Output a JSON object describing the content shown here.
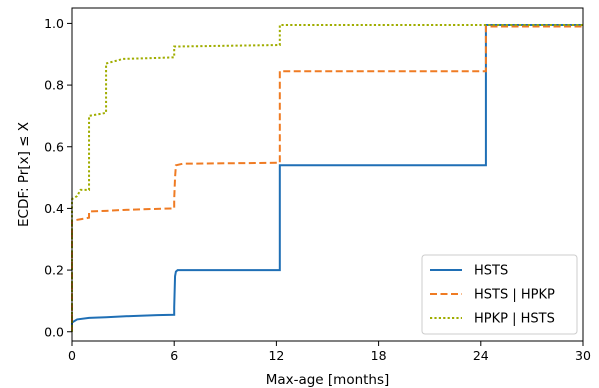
{
  "chart_data": {
    "type": "line",
    "xlabel": "Max-age [months]",
    "ylabel": "ECDF: Pr[x] ≤ X",
    "xlim": [
      0,
      30
    ],
    "ylim": [
      -0.03,
      1.05
    ],
    "xticks": [
      0,
      6,
      12,
      18,
      24,
      30
    ],
    "yticks": [
      0.0,
      0.2,
      0.4,
      0.6,
      0.8,
      1.0
    ],
    "xtick_labels": [
      "0",
      "6",
      "12",
      "18",
      "24",
      "30"
    ],
    "ytick_labels": [
      "0.0",
      "0.2",
      "0.4",
      "0.6",
      "0.8",
      "1.0"
    ],
    "grid": false,
    "legend_position": "lower-right",
    "series": [
      {
        "name": "HSTS",
        "color": "#1f6fb5",
        "style": "solid",
        "points": [
          [
            0,
            0.0
          ],
          [
            0,
            0.03
          ],
          [
            0.3,
            0.04
          ],
          [
            1,
            0.045
          ],
          [
            2,
            0.047
          ],
          [
            3,
            0.05
          ],
          [
            4,
            0.052
          ],
          [
            5,
            0.054
          ],
          [
            6,
            0.055
          ],
          [
            6,
            0.08
          ],
          [
            6.05,
            0.18
          ],
          [
            6.1,
            0.195
          ],
          [
            6.2,
            0.2
          ],
          [
            12.2,
            0.2
          ],
          [
            12.2,
            0.54
          ],
          [
            24.3,
            0.54
          ],
          [
            24.3,
            0.995
          ],
          [
            30,
            0.995
          ]
        ]
      },
      {
        "name": "HSTS | HPKP",
        "color": "#ef7b23",
        "style": "dashed",
        "points": [
          [
            0,
            0.0
          ],
          [
            0,
            0.36
          ],
          [
            0.5,
            0.365
          ],
          [
            1,
            0.37
          ],
          [
            1,
            0.39
          ],
          [
            2,
            0.392
          ],
          [
            3,
            0.395
          ],
          [
            4,
            0.397
          ],
          [
            6,
            0.4
          ],
          [
            6,
            0.43
          ],
          [
            6.05,
            0.5
          ],
          [
            6.1,
            0.54
          ],
          [
            6.5,
            0.545
          ],
          [
            12.2,
            0.548
          ],
          [
            12.2,
            0.845
          ],
          [
            24.3,
            0.845
          ],
          [
            24.3,
            0.99
          ],
          [
            30,
            0.99
          ]
        ]
      },
      {
        "name": "HPKP | HSTS",
        "color": "#a0ad00",
        "style": "dotted",
        "points": [
          [
            0,
            0.0
          ],
          [
            0,
            0.43
          ],
          [
            0.3,
            0.44
          ],
          [
            0.5,
            0.46
          ],
          [
            1,
            0.46
          ],
          [
            1,
            0.7
          ],
          [
            2,
            0.71
          ],
          [
            2,
            0.87
          ],
          [
            3,
            0.885
          ],
          [
            5,
            0.888
          ],
          [
            6,
            0.89
          ],
          [
            6,
            0.925
          ],
          [
            12.2,
            0.93
          ],
          [
            12.2,
            0.995
          ],
          [
            30,
            0.995
          ]
        ]
      }
    ]
  }
}
